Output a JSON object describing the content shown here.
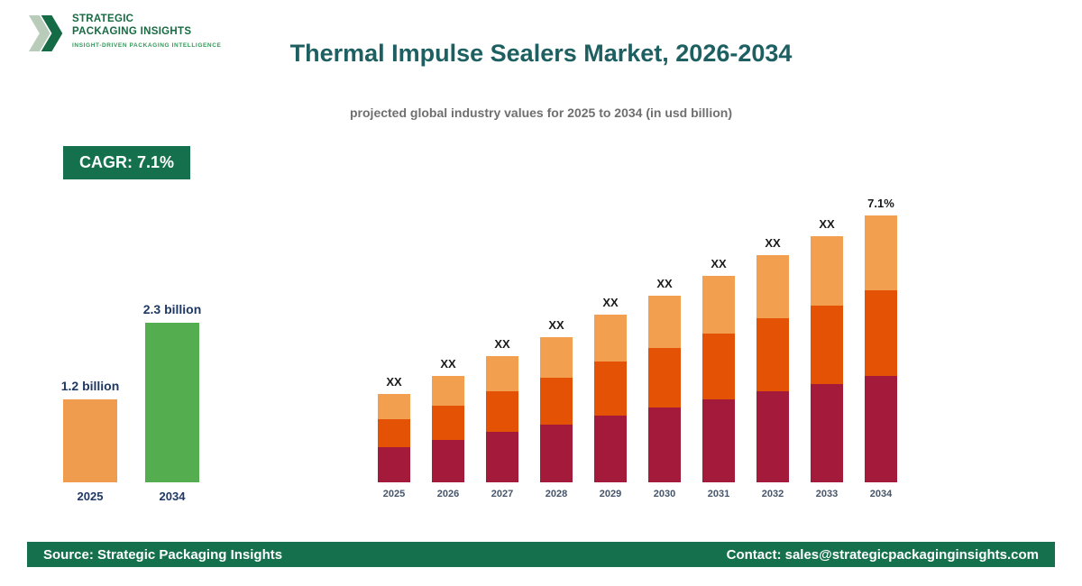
{
  "header": {
    "logo": {
      "line1": "STRATEGIC",
      "line2": "PACKAGING INSIGHTS",
      "tagline": "INSIGHT-DRIVEN PACKAGING INTELLIGENCE"
    },
    "title": "Thermal Impulse Sealers Market, 2026-2034",
    "subtitle": "projected global industry values for 2025 to 2034 (in usd billion)"
  },
  "badge": {
    "label": "CAGR: 7.1%"
  },
  "footer": {
    "source": "Source: Strategic Packaging Insights",
    "contact": "Contact: sales@strategicpackaginginsights.com"
  },
  "colors": {
    "brand_green": "#15714D",
    "title_teal": "#1E6062",
    "navy_label": "#1F3864",
    "mini_orange": "#F09C4E",
    "mini_green": "#54AE50",
    "stack_bottom": "#A41A3B",
    "stack_middle": "#E35205",
    "stack_top": "#F2A04F"
  },
  "chart_data": [
    {
      "type": "bar",
      "categories": [
        "2025",
        "2034"
      ],
      "values": [
        1.2,
        2.3
      ],
      "value_labels": [
        "1.2 billion",
        "2.3 billion"
      ],
      "colors": [
        "#F09C4E",
        "#54AE50"
      ],
      "ylabel": "USD billion"
    },
    {
      "type": "bar",
      "stacked": true,
      "categories": [
        "2025",
        "2026",
        "2027",
        "2028",
        "2029",
        "2030",
        "2031",
        "2032",
        "2033",
        "2034"
      ],
      "series": [
        {
          "name": "bottom",
          "color": "#A41A3B",
          "values": [
            39,
            47,
            56,
            64,
            74,
            83,
            92,
            101,
            109,
            118
          ]
        },
        {
          "name": "middle",
          "color": "#E35205",
          "values": [
            31,
            38,
            45,
            52,
            60,
            66,
            73,
            81,
            87,
            95
          ]
        },
        {
          "name": "top",
          "color": "#F2A04F",
          "values": [
            28,
            33,
            39,
            45,
            52,
            58,
            64,
            70,
            77,
            83
          ]
        }
      ],
      "bar_labels": [
        "XX",
        "XX",
        "XX",
        "XX",
        "XX",
        "XX",
        "XX",
        "XX",
        "XX",
        "7.1%"
      ],
      "units": "relative height (values masked on chart)"
    }
  ]
}
